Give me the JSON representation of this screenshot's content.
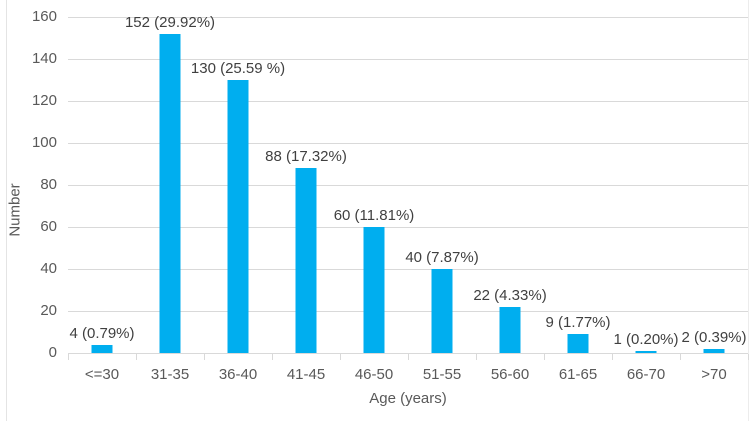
{
  "chart_data": {
    "type": "bar",
    "title": "",
    "categories": [
      "<=30",
      "31-35",
      "36-40",
      "41-45",
      "46-50",
      "51-55",
      "56-60",
      "61-65",
      "66-70",
      ">70"
    ],
    "values": [
      4,
      152,
      130,
      88,
      60,
      40,
      22,
      9,
      1,
      2
    ],
    "data_labels": [
      "4 (0.79%)",
      "152 (29.92%)",
      "130 (25.59 %)",
      "88 (17.32%)",
      "60 (11.81%)",
      "40 (7.87%)",
      "22 (4.33%)",
      "9 (1.77%)",
      "1 (0.20%)",
      "2 (0.39%)"
    ],
    "xlabel": "Age (years)",
    "ylabel": "Number",
    "ylim": [
      0,
      160
    ],
    "yticks": [
      0,
      20,
      40,
      60,
      80,
      100,
      120,
      140,
      160
    ],
    "grid": true,
    "legend": "none",
    "bar_color": "#00aeef",
    "gridline_color": "#d9d9d9",
    "axis_line_color": "#d9d9d9",
    "axis_text_color": "#595959",
    "label_text_color": "#404040"
  }
}
